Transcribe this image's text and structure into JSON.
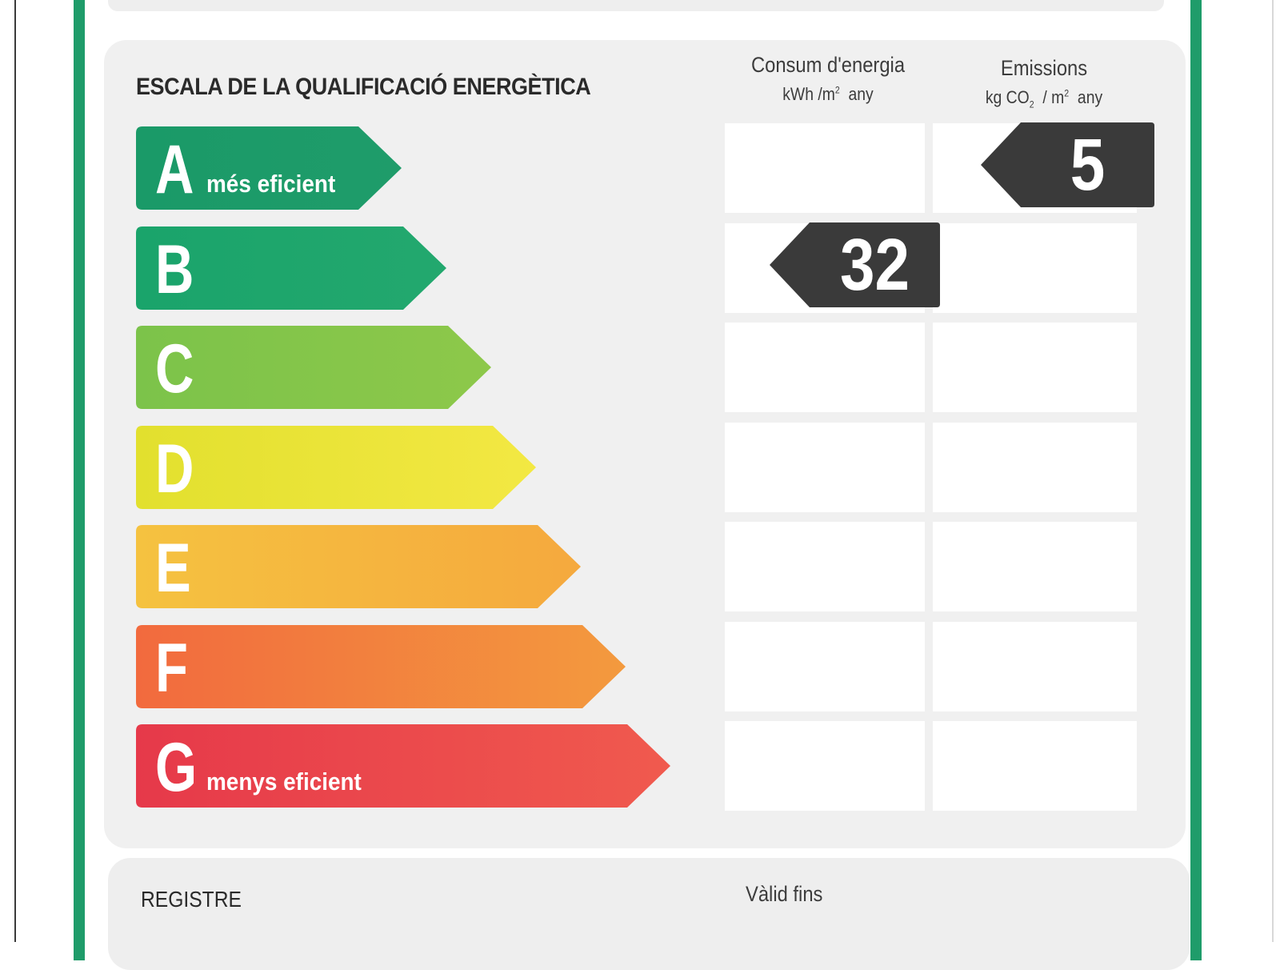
{
  "title": "ESCALA DE LA QUALIFICACIÓ ENERGÈTICA",
  "consumption_header": {
    "label": "Consum d'energia",
    "unit_prefix": "kWh /m",
    "unit_exp": "2",
    "unit_suffix": "any"
  },
  "emissions_header": {
    "label": "Emissions",
    "unit_prefix": "kg CO",
    "unit_sub": "2",
    "unit_mid": "/ m",
    "unit_exp": "2",
    "unit_suffix": "any"
  },
  "bands": [
    {
      "letter": "A",
      "caption": "més eficient",
      "color_start": "#1a9a68",
      "color_end": "#1f9c6a"
    },
    {
      "letter": "B",
      "caption": "",
      "color_start": "#1aa46b",
      "color_end": "#23a86e"
    },
    {
      "letter": "C",
      "caption": "",
      "color_start": "#7cc34a",
      "color_end": "#8dc84a"
    },
    {
      "letter": "D",
      "caption": "",
      "color_start": "#e2e02e",
      "color_end": "#f3e843"
    },
    {
      "letter": "E",
      "caption": "",
      "color_start": "#f5c240",
      "color_end": "#f5a93e"
    },
    {
      "letter": "F",
      "caption": "",
      "color_start": "#f26a3e",
      "color_end": "#f39a3e"
    },
    {
      "letter": "G",
      "caption": "menys eficient",
      "color_start": "#e6394a",
      "color_end": "#f05a4e"
    }
  ],
  "rating": {
    "consumption": {
      "value": "32",
      "band": "B"
    },
    "emissions": {
      "value": "5",
      "band": "A"
    },
    "tag_color": "#3a3a3a"
  },
  "footer": {
    "registre_label": "REGISTRE",
    "valid_label": "Vàlid fins"
  }
}
